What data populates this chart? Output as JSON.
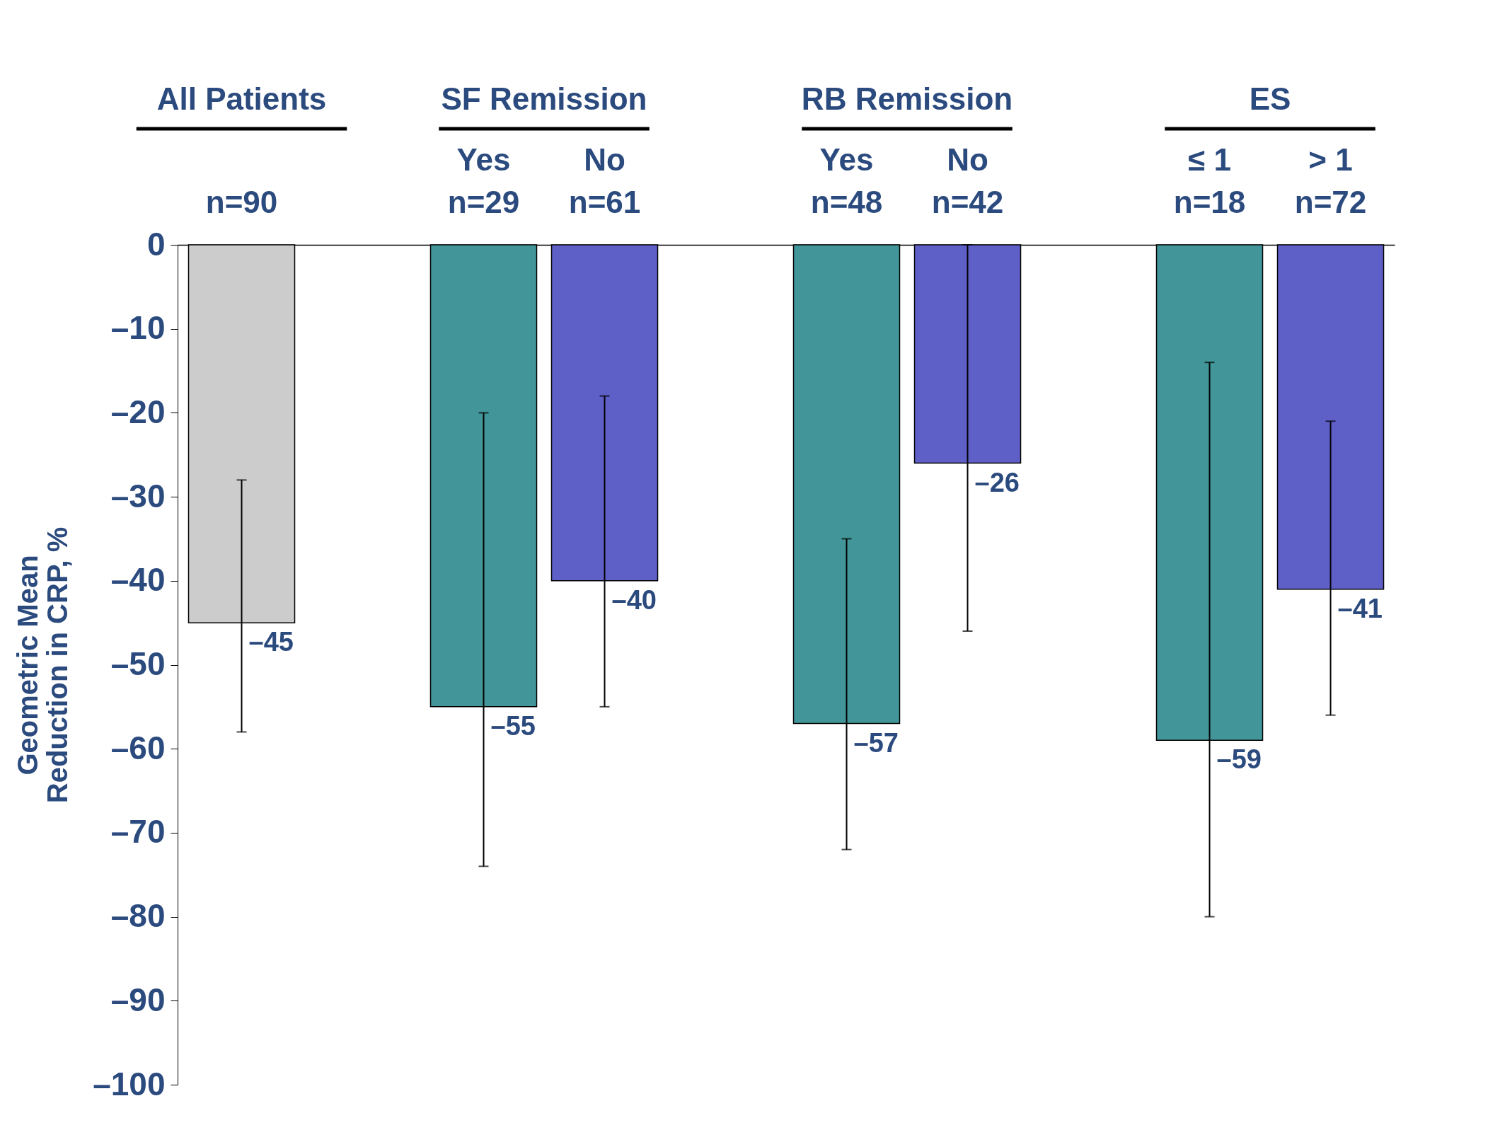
{
  "chart_data": {
    "type": "bar",
    "ylabel": "Geometric Mean\nReduction in CRP, %",
    "categories": [
      "n=90",
      null,
      "Yes\nn=29",
      "No\nn=61",
      null,
      "Yes\nn=48",
      "No\nn=42",
      null,
      "≤ 1\nn=18",
      "> 1\nn=72"
    ],
    "values": [
      -45,
      null,
      -55,
      -40,
      null,
      -57,
      -26,
      null,
      -59,
      -41
    ],
    "colors": [
      "#cccccc",
      null,
      "#42969a",
      "#5f5fc8",
      null,
      "#42969a",
      "#5f5fc8",
      null,
      "#42969a",
      "#5f5fc8"
    ],
    "errors": [
      [
        -58,
        -28
      ],
      null,
      [
        -74,
        -20
      ],
      [
        -55,
        -18
      ],
      null,
      [
        -72,
        -35
      ],
      [
        -46,
        0
      ],
      null,
      [
        -80,
        -14
      ],
      [
        -56,
        -21
      ]
    ],
    "value_labels": [
      "–45",
      null,
      "–55",
      "–40",
      null,
      "–57",
      "–26",
      null,
      "–59",
      "–41"
    ],
    "annotations": [
      "All Patients",
      "SF Remission",
      "RB Remission",
      "ES"
    ],
    "ylim": [
      -100,
      0
    ],
    "yticks": [
      {
        "value": 0,
        "label": "0"
      },
      {
        "value": -10,
        "label": "–10"
      },
      {
        "value": -20,
        "label": "–20"
      },
      {
        "value": -30,
        "label": "–30"
      },
      {
        "value": -40,
        "label": "–40"
      },
      {
        "value": -50,
        "label": "–50"
      },
      {
        "value": -60,
        "label": "–60"
      },
      {
        "value": -70,
        "label": "–70"
      },
      {
        "value": -80,
        "label": "–80"
      },
      {
        "value": -90,
        "label": "–90"
      },
      {
        "value": -100,
        "label": "–100"
      }
    ],
    "grid": false
  }
}
